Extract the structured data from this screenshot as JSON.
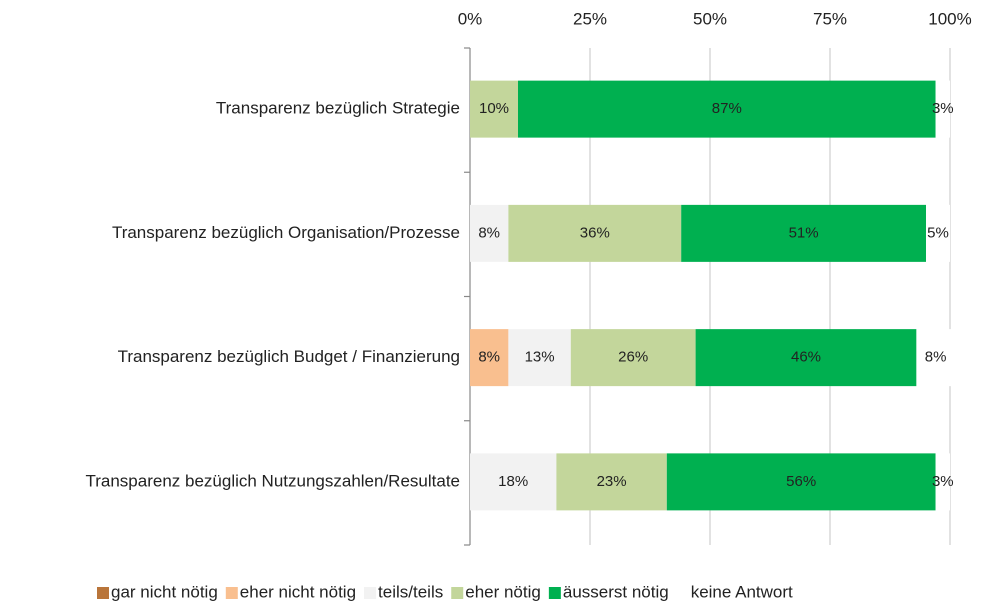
{
  "chart_data": {
    "type": "stacked-barh",
    "categories": [
      "Transparenz bezüglich Strategie",
      "Transparenz bezüglich Organisation/Prozesse",
      "Transparenz bezüglich Budget / Finanzierung",
      "Transparenz bezüglich Nutzungszahlen/Resultate"
    ],
    "series": [
      {
        "name": "gar nicht nötig",
        "color": "#b9753a",
        "label_color": "#b9753a",
        "values": [
          0,
          0,
          0,
          0
        ],
        "value_labels": [
          null,
          null,
          null,
          null
        ]
      },
      {
        "name": "eher nicht nötig",
        "color": "#f9bf8f",
        "label_color": "#e46c0a",
        "values": [
          0,
          0,
          8,
          0
        ],
        "value_labels": [
          null,
          null,
          "8%",
          null
        ]
      },
      {
        "name": "teils/teils",
        "color": "#f2f2f2",
        "label_color": "#d0d0d0",
        "values": [
          0,
          8,
          13,
          18
        ],
        "value_labels": [
          null,
          "8%",
          "13%",
          "18%"
        ]
      },
      {
        "name": "eher nötig",
        "color": "#c3d69b",
        "label_color": "#77933c",
        "values": [
          10,
          36,
          26,
          23
        ],
        "value_labels": [
          "10%",
          "36%",
          "26%",
          "23%"
        ]
      },
      {
        "name": "äusserst nötig",
        "color": "#00b050",
        "label_color": "#111111",
        "values": [
          87,
          51,
          46,
          56
        ],
        "value_labels": [
          "87%",
          "51%",
          "46%",
          "56%"
        ]
      },
      {
        "name": "keine Antwort",
        "color": "#ffffff",
        "label_color": "#d0d0d0",
        "values": [
          3,
          5,
          8,
          3
        ],
        "value_labels": [
          "3%",
          "5%",
          "8%",
          "3%"
        ]
      }
    ],
    "xlim": [
      0,
      100
    ],
    "xticks": [
      {
        "value": 0,
        "label": "0%"
      },
      {
        "value": 25,
        "label": "25%"
      },
      {
        "value": 50,
        "label": "50%"
      },
      {
        "value": 75,
        "label": "75%"
      },
      {
        "value": 100,
        "label": "100%"
      }
    ],
    "grid": true,
    "legend": "bottom"
  }
}
